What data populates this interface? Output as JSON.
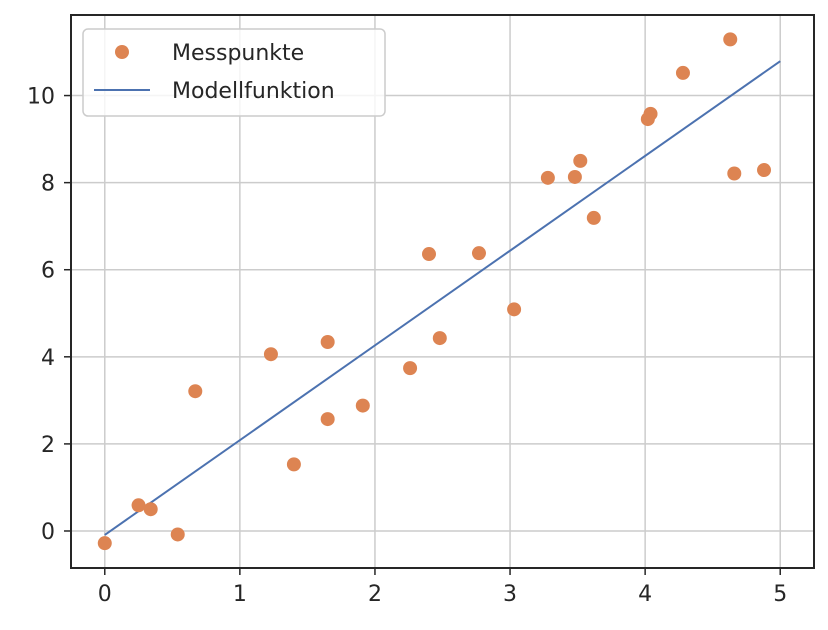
{
  "chart_data": {
    "type": "scatter",
    "xlim": [
      -0.25,
      5.25
    ],
    "ylim": [
      -0.85,
      11.85
    ],
    "x_ticks": [
      0,
      1,
      2,
      3,
      4,
      5
    ],
    "y_ticks": [
      0,
      2,
      4,
      6,
      8,
      10
    ],
    "grid": true,
    "legend_position": "top-left",
    "series": [
      {
        "name": "Messpunkte",
        "kind": "scatter",
        "color": "#dd8452",
        "points": [
          [
            0.0,
            -0.28
          ],
          [
            0.25,
            0.59
          ],
          [
            0.34,
            0.5
          ],
          [
            0.54,
            -0.08
          ],
          [
            0.67,
            3.21
          ],
          [
            1.23,
            4.06
          ],
          [
            1.4,
            1.53
          ],
          [
            1.65,
            2.57
          ],
          [
            1.65,
            4.34
          ],
          [
            1.91,
            2.88
          ],
          [
            2.26,
            3.74
          ],
          [
            2.4,
            6.36
          ],
          [
            2.48,
            4.43
          ],
          [
            2.77,
            6.38
          ],
          [
            3.03,
            5.09
          ],
          [
            3.28,
            8.11
          ],
          [
            3.48,
            8.13
          ],
          [
            3.52,
            8.5
          ],
          [
            3.62,
            7.19
          ],
          [
            4.02,
            9.46
          ],
          [
            4.04,
            9.58
          ],
          [
            4.28,
            10.52
          ],
          [
            4.63,
            11.29
          ],
          [
            4.66,
            8.21
          ],
          [
            4.88,
            8.29
          ]
        ]
      },
      {
        "name": "Modellfunktion",
        "kind": "line",
        "color": "#4c72b0",
        "points": [
          [
            0.0,
            -0.09
          ],
          [
            5.0,
            10.79
          ]
        ]
      }
    ]
  }
}
